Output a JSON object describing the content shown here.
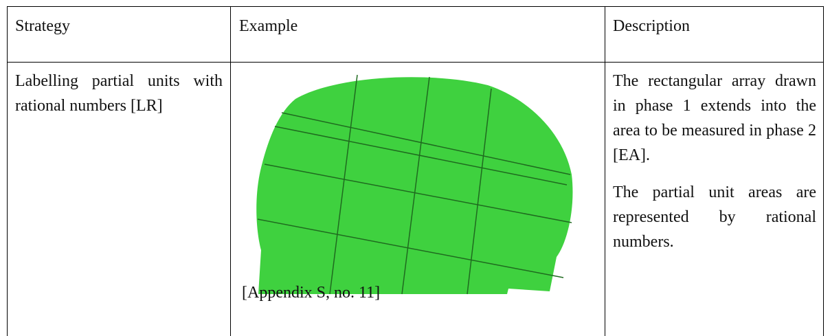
{
  "table": {
    "header": [
      "Strategy",
      "Example",
      "Description"
    ],
    "rows": [
      {
        "strategy": "Labelling partial units with rational numbers [LR]",
        "example_caption": "[Appendix S, no. 11]",
        "description": [
          "The rectangular array drawn in phase 1 extends into the area to be measured in phase 2 [EA].",
          "The partial unit areas are represented by rational numbers."
        ]
      }
    ]
  }
}
